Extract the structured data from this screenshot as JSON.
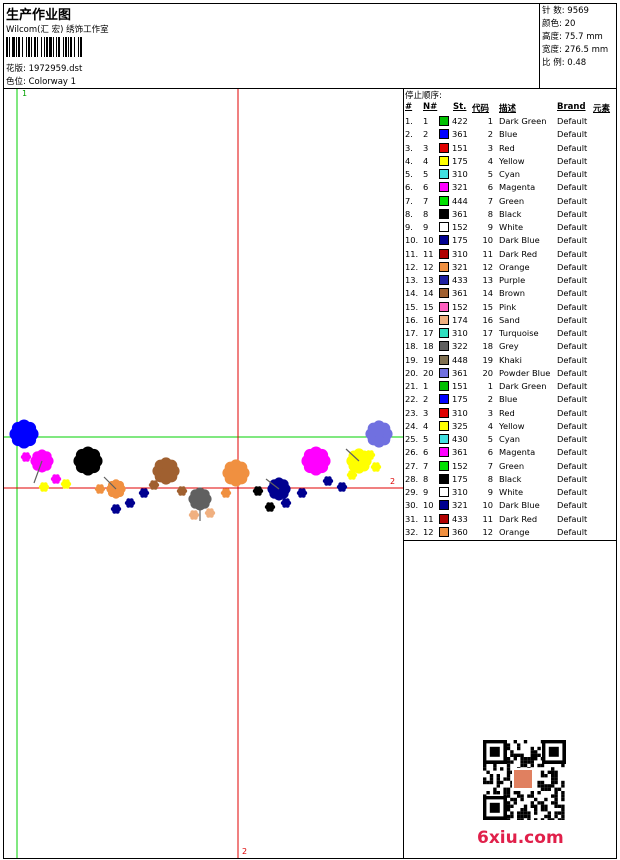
{
  "header": {
    "title": "生产作业图",
    "company": "Wilcom(汇 宏) 绣饰工作室",
    "design_label": "花版:",
    "design_value": "1972959.dst",
    "colorway_label": "色位:",
    "colorway_value": "Colorway 1"
  },
  "stats": {
    "stitches_label": "针 数:",
    "stitches_value": "9569",
    "colors_label": "颜色:",
    "colors_value": "20",
    "height_label": "高度:",
    "height_value": "75.7 mm",
    "width_label": "宽度:",
    "width_value": "276.5 mm",
    "scale_label": "比 例:",
    "scale_value": "0.48"
  },
  "stop_sequence": {
    "title": "停止顺序:",
    "columns": [
      "#",
      "N#",
      "St.",
      "代码",
      "描述",
      "Brand",
      "元素"
    ],
    "rows": [
      {
        "n": "1.",
        "nn": "1",
        "color": "#00c000",
        "st": "422",
        "code": "1",
        "desc": "Dark Green",
        "brand": "Default"
      },
      {
        "n": "2.",
        "nn": "2",
        "color": "#0000ff",
        "st": "361",
        "code": "2",
        "desc": "Blue",
        "brand": "Default"
      },
      {
        "n": "3.",
        "nn": "3",
        "color": "#e00000",
        "st": "151",
        "code": "3",
        "desc": "Red",
        "brand": "Default"
      },
      {
        "n": "4.",
        "nn": "4",
        "color": "#ffff00",
        "st": "175",
        "code": "4",
        "desc": "Yellow",
        "brand": "Default"
      },
      {
        "n": "5.",
        "nn": "5",
        "color": "#40e0e0",
        "st": "310",
        "code": "5",
        "desc": "Cyan",
        "brand": "Default"
      },
      {
        "n": "6.",
        "nn": "6",
        "color": "#ff00ff",
        "st": "321",
        "code": "6",
        "desc": "Magenta",
        "brand": "Default"
      },
      {
        "n": "7.",
        "nn": "7",
        "color": "#00e000",
        "st": "444",
        "code": "7",
        "desc": "Green",
        "brand": "Default"
      },
      {
        "n": "8.",
        "nn": "8",
        "color": "#000000",
        "st": "361",
        "code": "8",
        "desc": "Black",
        "brand": "Default"
      },
      {
        "n": "9.",
        "nn": "9",
        "color": "#ffffff",
        "st": "152",
        "code": "9",
        "desc": "White",
        "brand": "Default"
      },
      {
        "n": "10.",
        "nn": "10",
        "color": "#000090",
        "st": "175",
        "code": "10",
        "desc": "Dark Blue",
        "brand": "Default"
      },
      {
        "n": "11.",
        "nn": "11",
        "color": "#b00000",
        "st": "310",
        "code": "11",
        "desc": "Dark Red",
        "brand": "Default"
      },
      {
        "n": "12.",
        "nn": "12",
        "color": "#f09040",
        "st": "321",
        "code": "12",
        "desc": "Orange",
        "brand": "Default"
      },
      {
        "n": "13.",
        "nn": "13",
        "color": "#2020a0",
        "st": "433",
        "code": "13",
        "desc": "Purple",
        "brand": "Default"
      },
      {
        "n": "14.",
        "nn": "14",
        "color": "#a06030",
        "st": "361",
        "code": "14",
        "desc": "Brown",
        "brand": "Default"
      },
      {
        "n": "15.",
        "nn": "15",
        "color": "#ff60c0",
        "st": "152",
        "code": "15",
        "desc": "Pink",
        "brand": "Default"
      },
      {
        "n": "16.",
        "nn": "16",
        "color": "#f0b080",
        "st": "174",
        "code": "16",
        "desc": "Sand",
        "brand": "Default"
      },
      {
        "n": "17.",
        "nn": "17",
        "color": "#30e0c0",
        "st": "310",
        "code": "17",
        "desc": "Turquoise",
        "brand": "Default"
      },
      {
        "n": "18.",
        "nn": "18",
        "color": "#606060",
        "st": "322",
        "code": "18",
        "desc": "Grey",
        "brand": "Default"
      },
      {
        "n": "19.",
        "nn": "19",
        "color": "#807050",
        "st": "448",
        "code": "19",
        "desc": "Khaki",
        "brand": "Default"
      },
      {
        "n": "20.",
        "nn": "20",
        "color": "#7070e0",
        "st": "361",
        "code": "20",
        "desc": "Powder Blue",
        "brand": "Default"
      },
      {
        "n": "21.",
        "nn": "1",
        "color": "#00c000",
        "st": "151",
        "code": "1",
        "desc": "Dark Green",
        "brand": "Default"
      },
      {
        "n": "22.",
        "nn": "2",
        "color": "#0000ff",
        "st": "175",
        "code": "2",
        "desc": "Blue",
        "brand": "Default"
      },
      {
        "n": "23.",
        "nn": "3",
        "color": "#e00000",
        "st": "310",
        "code": "3",
        "desc": "Red",
        "brand": "Default"
      },
      {
        "n": "24.",
        "nn": "4",
        "color": "#ffff00",
        "st": "325",
        "code": "4",
        "desc": "Yellow",
        "brand": "Default"
      },
      {
        "n": "25.",
        "nn": "5",
        "color": "#40e0e0",
        "st": "430",
        "code": "5",
        "desc": "Cyan",
        "brand": "Default"
      },
      {
        "n": "26.",
        "nn": "6",
        "color": "#ff00ff",
        "st": "361",
        "code": "6",
        "desc": "Magenta",
        "brand": "Default"
      },
      {
        "n": "27.",
        "nn": "7",
        "color": "#00e000",
        "st": "152",
        "code": "7",
        "desc": "Green",
        "brand": "Default"
      },
      {
        "n": "28.",
        "nn": "8",
        "color": "#000000",
        "st": "175",
        "code": "8",
        "desc": "Black",
        "brand": "Default"
      },
      {
        "n": "29.",
        "nn": "9",
        "color": "#ffffff",
        "st": "310",
        "code": "9",
        "desc": "White",
        "brand": "Default"
      },
      {
        "n": "30.",
        "nn": "10",
        "color": "#000090",
        "st": "321",
        "code": "10",
        "desc": "Dark Blue",
        "brand": "Default"
      },
      {
        "n": "31.",
        "nn": "11",
        "color": "#b00000",
        "st": "433",
        "code": "11",
        "desc": "Dark Red",
        "brand": "Default"
      },
      {
        "n": "32.",
        "nn": "12",
        "color": "#f09040",
        "st": "360",
        "code": "12",
        "desc": "Orange",
        "brand": "Default"
      }
    ]
  },
  "canvas": {
    "guide_labels": [
      "1",
      "2",
      "2"
    ],
    "guide_colors": {
      "green": "#00d000",
      "red": "#e00000"
    },
    "flowers": [
      {
        "color": "#0000ff",
        "icon": "flower-icon"
      },
      {
        "color": "#ff00ff",
        "icon": "flower-icon"
      },
      {
        "color": "#000000",
        "icon": "flower-icon"
      },
      {
        "color": "#f09040",
        "icon": "flower-icon"
      },
      {
        "color": "#a06030",
        "icon": "flower-icon"
      },
      {
        "color": "#606060",
        "icon": "flower-icon"
      },
      {
        "color": "#f09040",
        "icon": "flower-icon"
      },
      {
        "color": "#000090",
        "icon": "flower-icon"
      },
      {
        "color": "#ff00ff",
        "icon": "flower-icon"
      },
      {
        "color": "#ffff00",
        "icon": "flower-icon"
      },
      {
        "color": "#7070e0",
        "icon": "flower-icon"
      }
    ]
  },
  "watermark": "6xiu.com"
}
